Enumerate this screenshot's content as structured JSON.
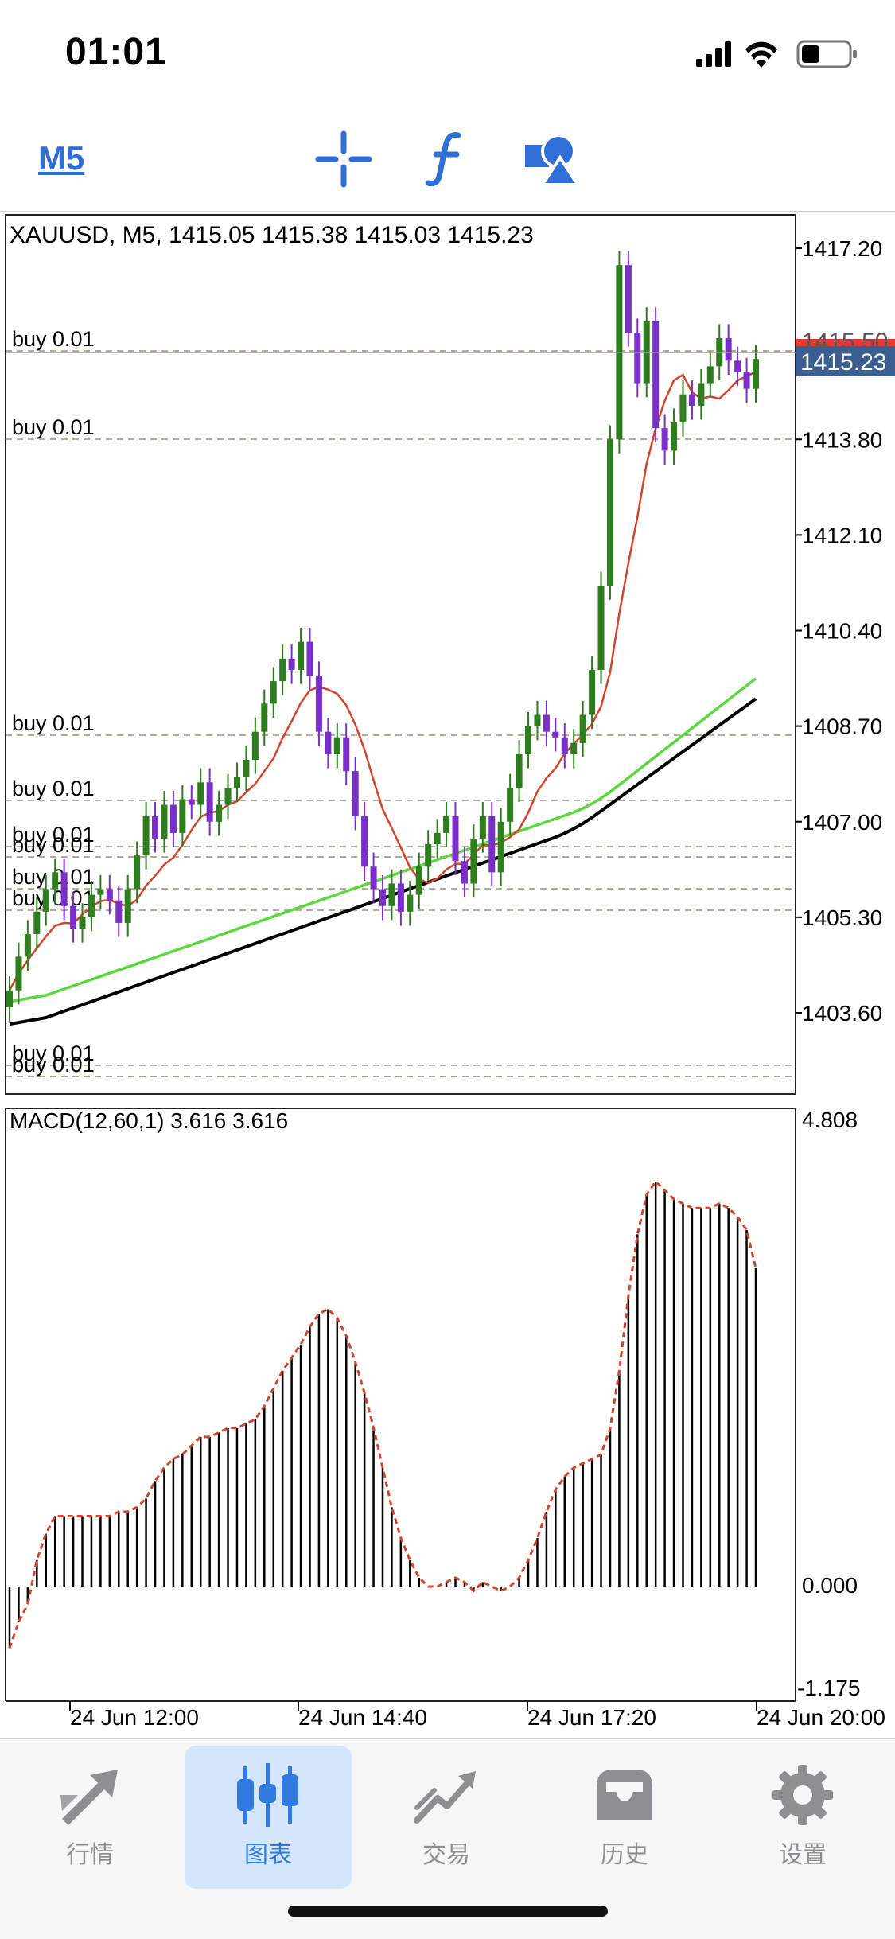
{
  "status_bar": {
    "time": "01:01"
  },
  "toolbar": {
    "timeframe": "M5",
    "icons": [
      "crosshair-icon",
      "indicator-function-icon",
      "objects-shapes-icon"
    ]
  },
  "chart": {
    "header": "XAUUSD, M5, 1415.05 1415.38 1415.03 1415.23",
    "current_price": "1415.23",
    "price_ticks": [
      "1417.20",
      "1413.80",
      "1412.10",
      "1410.40",
      "1408.70",
      "1407.00",
      "1405.30",
      "1403.60"
    ],
    "hidden_tick_partial": "1415.50",
    "order_lines": [
      "buy 0.01",
      "buy 0.01",
      "buy 0.01",
      "buy 0.01",
      "buy 0.01",
      "buy 0.01",
      "buy 0.01",
      "buy 0.01",
      "buy 0.01",
      "buy 0.01",
      "buy 0.01"
    ],
    "macd_header": "MACD(12,60,1) 3.616 3.616",
    "macd_ticks": [
      "4.808",
      "0.000",
      "-1.175"
    ],
    "time_labels": [
      "24 Jun 12:00",
      "24 Jun 14:40",
      "24 Jun 17:20",
      "24 Jun 20:00"
    ],
    "colors": {
      "bull_candle": "#2e7d1f",
      "bear_candle": "#7b2fc9",
      "ma_fast": "#d0452b",
      "ma_mid": "#5ad83d",
      "ma_slow": "#000000",
      "current_price_bg": "#3b5d8f",
      "ask_line": "#e53935"
    }
  },
  "chart_data": {
    "type": "candlestick",
    "symbol": "XAUUSD",
    "timeframe": "M5",
    "ylim": [
      1402.6,
      1418.1
    ],
    "candles_close_approx": [
      1404.0,
      1404.6,
      1405.0,
      1405.4,
      1405.8,
      1406.1,
      1405.5,
      1405.1,
      1405.3,
      1405.7,
      1405.8,
      1405.6,
      1405.2,
      1405.8,
      1406.4,
      1407.1,
      1406.7,
      1407.3,
      1406.8,
      1407.4,
      1407.3,
      1407.7,
      1407.0,
      1407.3,
      1407.6,
      1407.8,
      1408.1,
      1408.6,
      1409.1,
      1409.5,
      1409.9,
      1409.7,
      1410.2,
      1409.6,
      1408.6,
      1408.2,
      1408.5,
      1407.9,
      1407.1,
      1406.2,
      1405.8,
      1405.5,
      1405.9,
      1405.4,
      1405.7,
      1406.2,
      1406.6,
      1406.8,
      1407.1,
      1406.3,
      1405.9,
      1406.7,
      1407.1,
      1406.1,
      1407.0,
      1407.6,
      1408.2,
      1408.7,
      1408.9,
      1408.6,
      1408.5,
      1408.2,
      1408.4,
      1408.9,
      1409.7,
      1411.2,
      1413.8,
      1416.9,
      1415.7,
      1414.8,
      1415.9,
      1414.0,
      1413.6,
      1414.1,
      1414.6,
      1414.4,
      1414.8,
      1415.1,
      1415.6,
      1415.2,
      1415.0,
      1414.7,
      1415.23
    ],
    "macd_ylim": [
      -1.175,
      4.808
    ],
    "macd_approx": [
      -0.7,
      -0.4,
      -0.2,
      0.3,
      0.6,
      0.8,
      0.8,
      0.8,
      0.8,
      0.8,
      0.8,
      0.8,
      0.85,
      0.85,
      0.9,
      1.0,
      1.2,
      1.35,
      1.45,
      1.5,
      1.6,
      1.7,
      1.7,
      1.75,
      1.8,
      1.8,
      1.85,
      1.9,
      2.05,
      2.25,
      2.45,
      2.6,
      2.75,
      2.95,
      3.1,
      3.15,
      3.05,
      2.85,
      2.55,
      2.2,
      1.8,
      1.35,
      0.9,
      0.55,
      0.3,
      0.1,
      0.0,
      0.0,
      0.05,
      0.1,
      0.05,
      -0.05,
      0.05,
      0.0,
      -0.05,
      0.0,
      0.1,
      0.3,
      0.55,
      0.85,
      1.1,
      1.25,
      1.35,
      1.4,
      1.45,
      1.5,
      1.8,
      2.45,
      3.3,
      4.0,
      4.45,
      4.6,
      4.5,
      4.4,
      4.35,
      4.3,
      4.3,
      4.3,
      4.35,
      4.3,
      4.2,
      4.05,
      3.616
    ]
  },
  "tabs": [
    {
      "label": "行情",
      "icon": "quotes-arrows-icon"
    },
    {
      "label": "图表",
      "icon": "chart-candles-icon"
    },
    {
      "label": "交易",
      "icon": "trade-trend-icon"
    },
    {
      "label": "历史",
      "icon": "history-tray-icon"
    },
    {
      "label": "设置",
      "icon": "settings-gear-icon"
    }
  ]
}
